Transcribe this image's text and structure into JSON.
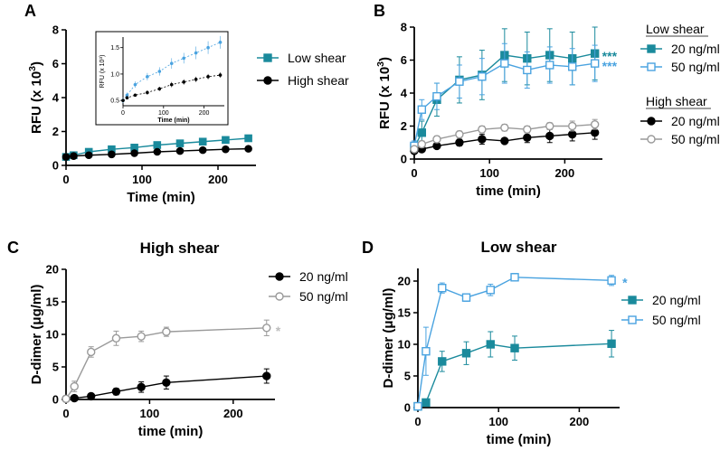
{
  "colors": {
    "teal": "#1a8a9c",
    "lightblue": "#4aa3e0",
    "black": "#000000",
    "gray": "#9a9a9a"
  },
  "chart_data": [
    {
      "id": "A",
      "panel_label": "A",
      "type": "line",
      "title": "",
      "xlabel": "Time (min)",
      "ylabel": "RFU (x 10³)",
      "ylim": [
        0,
        8
      ],
      "xlim": [
        0,
        250
      ],
      "xticks": [
        "0",
        "100",
        "200"
      ],
      "yticks": [
        "0",
        "2",
        "4",
        "6",
        "8"
      ],
      "legend_position": "top-right",
      "series": [
        {
          "name": "Low shear",
          "color": "#1a8a9c",
          "marker": "square-filled",
          "x": [
            0,
            10,
            30,
            60,
            90,
            120,
            150,
            180,
            210,
            240
          ],
          "y": [
            0.5,
            0.6,
            0.8,
            0.95,
            1.05,
            1.2,
            1.3,
            1.4,
            1.5,
            1.6
          ]
        },
        {
          "name": "High shear",
          "color": "#000000",
          "marker": "circle-filled",
          "x": [
            0,
            10,
            30,
            60,
            90,
            120,
            150,
            180,
            210,
            240
          ],
          "y": [
            0.5,
            0.55,
            0.6,
            0.65,
            0.72,
            0.8,
            0.85,
            0.9,
            0.95,
            0.98
          ]
        }
      ],
      "inset": {
        "ylabel": "RFU (x 10³)",
        "xlabel": "Time (min)",
        "yticks": [
          "0.5",
          "1.0",
          "1.5"
        ],
        "xticks": [
          "0",
          "100",
          "200"
        ],
        "ylim": [
          0.4,
          1.7
        ],
        "xlim": [
          0,
          250
        ]
      }
    },
    {
      "id": "B",
      "panel_label": "B",
      "type": "line",
      "title": "",
      "xlabel": "time (min)",
      "ylabel": "RFU (x 10³)",
      "ylim": [
        0,
        8
      ],
      "xlim": [
        0,
        250
      ],
      "xticks": [
        "0",
        "100",
        "200"
      ],
      "yticks": [
        "0",
        "2",
        "4",
        "6",
        "8"
      ],
      "legend_groups": [
        "Low shear",
        "High shear"
      ],
      "series": [
        {
          "name": "20 ng/ml",
          "group": "Low shear",
          "color": "#1a8a9c",
          "marker": "square-filled",
          "x": [
            0,
            10,
            30,
            60,
            90,
            120,
            150,
            180,
            210,
            240
          ],
          "y": [
            0.7,
            1.6,
            3.6,
            4.8,
            5.1,
            6.3,
            6.1,
            6.3,
            6.1,
            6.4
          ],
          "err": [
            0.3,
            0.7,
            1.0,
            1.4,
            1.5,
            1.6,
            1.6,
            1.6,
            1.6,
            1.6
          ]
        },
        {
          "name": "50 ng/ml",
          "group": "Low shear",
          "color": "#4aa3e0",
          "marker": "square-open",
          "x": [
            0,
            10,
            30,
            60,
            90,
            120,
            150,
            180,
            210,
            240
          ],
          "y": [
            0.8,
            3.0,
            3.8,
            4.7,
            5.0,
            5.8,
            5.4,
            5.7,
            5.6,
            5.8
          ],
          "err": [
            0.3,
            0.6,
            0.8,
            1.0,
            1.1,
            1.2,
            1.1,
            1.1,
            1.1,
            1.1
          ]
        },
        {
          "name": "20 ng/ml",
          "group": "High shear",
          "color": "#000000",
          "marker": "circle-filled",
          "x": [
            0,
            10,
            30,
            60,
            90,
            120,
            150,
            180,
            210,
            240
          ],
          "y": [
            0.5,
            0.6,
            0.8,
            1.0,
            1.2,
            1.1,
            1.3,
            1.4,
            1.5,
            1.6
          ],
          "err": [
            0.1,
            0.1,
            0.15,
            0.2,
            0.3,
            0.15,
            0.3,
            0.4,
            0.4,
            0.4
          ]
        },
        {
          "name": "50 ng/ml",
          "group": "High shear",
          "color": "#9a9a9a",
          "marker": "circle-open",
          "x": [
            0,
            10,
            30,
            60,
            90,
            120,
            150,
            180,
            210,
            240
          ],
          "y": [
            0.6,
            0.9,
            1.2,
            1.5,
            1.8,
            1.9,
            1.8,
            2.0,
            2.0,
            2.1
          ],
          "err": [
            0.1,
            0.2,
            0.2,
            0.2,
            0.2,
            0.2,
            0.2,
            0.2,
            0.3,
            0.3
          ]
        }
      ],
      "annotations": [
        {
          "text": "***",
          "color": "#1a8a9c"
        },
        {
          "text": "***",
          "color": "#4aa3e0"
        }
      ]
    },
    {
      "id": "C",
      "panel_label": "C",
      "type": "line",
      "title": "High shear",
      "xlabel": "time (min)",
      "ylabel": "D-dimer (μg/ml)",
      "ylim": [
        0,
        20
      ],
      "xlim": [
        0,
        250
      ],
      "xticks": [
        "0",
        "100",
        "200"
      ],
      "yticks": [
        "0",
        "5",
        "10",
        "15",
        "20"
      ],
      "legend_position": "top-right",
      "series": [
        {
          "name": "20 ng/ml",
          "color": "#000000",
          "marker": "circle-filled",
          "x": [
            0,
            10,
            30,
            60,
            90,
            120,
            240
          ],
          "y": [
            0.1,
            0.2,
            0.5,
            1.2,
            1.9,
            2.6,
            3.6
          ],
          "err": [
            0.1,
            0.1,
            0.2,
            0.5,
            0.8,
            1.0,
            1.1
          ]
        },
        {
          "name": "50 ng/ml",
          "color": "#9a9a9a",
          "marker": "circle-open",
          "x": [
            0,
            10,
            30,
            60,
            90,
            120,
            240
          ],
          "y": [
            0.1,
            2.0,
            7.3,
            9.4,
            9.7,
            10.4,
            11.0
          ],
          "err": [
            0.2,
            0.8,
            0.8,
            1.1,
            0.8,
            0.7,
            1.2
          ]
        }
      ],
      "annotations": [
        {
          "text": "*",
          "color": "#bdbdbd"
        }
      ]
    },
    {
      "id": "D",
      "panel_label": "D",
      "type": "line",
      "title": "Low shear",
      "xlabel": "time (min)",
      "ylabel": "D-dimer (μg/ml)",
      "ylim": [
        0,
        22
      ],
      "xlim": [
        0,
        250
      ],
      "xticks": [
        "0",
        "100",
        "200"
      ],
      "yticks": [
        "0",
        "5",
        "10",
        "15",
        "20"
      ],
      "legend_position": "right",
      "series": [
        {
          "name": "20 ng/ml",
          "color": "#1a8a9c",
          "marker": "square-filled",
          "x": [
            0,
            10,
            30,
            60,
            90,
            120,
            240
          ],
          "y": [
            0.2,
            0.8,
            7.3,
            8.6,
            10.0,
            9.4,
            10.1
          ],
          "err": [
            0.2,
            0.3,
            1.6,
            1.8,
            2.0,
            1.9,
            2.1
          ]
        },
        {
          "name": "50 ng/ml",
          "color": "#4aa3e0",
          "marker": "square-open",
          "x": [
            0,
            10,
            30,
            60,
            90,
            120,
            240
          ],
          "y": [
            0.2,
            8.9,
            18.9,
            17.4,
            18.6,
            20.6,
            20.1
          ],
          "err": [
            0.2,
            3.8,
            0.8,
            0.6,
            0.9,
            0.6,
            0.8
          ]
        }
      ],
      "annotations": [
        {
          "text": "*",
          "color": "#4aa3e0"
        }
      ]
    }
  ]
}
